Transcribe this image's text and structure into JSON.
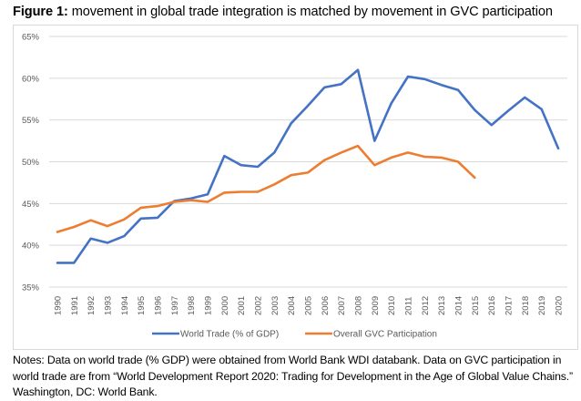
{
  "figure": {
    "label": "Figure 1:",
    "title": " movement in global trade integration is matched by movement in GVC participation"
  },
  "notes": "Notes: Data on world trade (% GDP) were obtained from World Bank WDI databank. Data on GVC participation in world trade are from “World Development Report 2020: Trading for Development in the Age of Global Value Chains.” Washington, DC: World Bank.",
  "chart_data": {
    "type": "line",
    "title": "movement in global trade integration is matched by movement in GVC participation",
    "xlabel": "",
    "ylabel": "",
    "x": [
      "1990",
      "1991",
      "1992",
      "1993",
      "1994",
      "1995",
      "1996",
      "1997",
      "1998",
      "1999",
      "2000",
      "2001",
      "2002",
      "2003",
      "2004",
      "2005",
      "2006",
      "2007",
      "2008",
      "2009",
      "2010",
      "2011",
      "2012",
      "2013",
      "2014",
      "2015",
      "2016",
      "2017",
      "2018",
      "2019",
      "2020"
    ],
    "ylim": [
      35,
      65
    ],
    "yticks": [
      35,
      40,
      45,
      50,
      55,
      60,
      65
    ],
    "ytick_labels": [
      "35%",
      "40%",
      "45%",
      "50%",
      "55%",
      "60%",
      "65%"
    ],
    "grid": true,
    "legend_position": "bottom",
    "series": [
      {
        "name": "World Trade (% of GDP)",
        "color": "#4472c4",
        "values": [
          37.9,
          37.9,
          40.8,
          40.3,
          41.1,
          43.2,
          43.3,
          45.3,
          45.6,
          46.1,
          50.7,
          49.6,
          49.4,
          51.1,
          54.6,
          56.7,
          58.9,
          59.3,
          61.0,
          52.5,
          57.0,
          60.2,
          59.9,
          59.2,
          58.6,
          56.2,
          54.4,
          56.1,
          57.7,
          56.3,
          51.6
        ]
      },
      {
        "name": "Overall GVC Participation",
        "color": "#ed7d31",
        "values": [
          41.6,
          42.2,
          43.0,
          42.3,
          43.1,
          44.5,
          44.7,
          45.2,
          45.4,
          45.2,
          46.3,
          46.4,
          46.4,
          47.3,
          48.4,
          48.7,
          50.2,
          51.1,
          51.9,
          49.6,
          50.5,
          51.1,
          50.6,
          50.5,
          50.0,
          48.1,
          null,
          null,
          null,
          null,
          null
        ]
      }
    ]
  }
}
